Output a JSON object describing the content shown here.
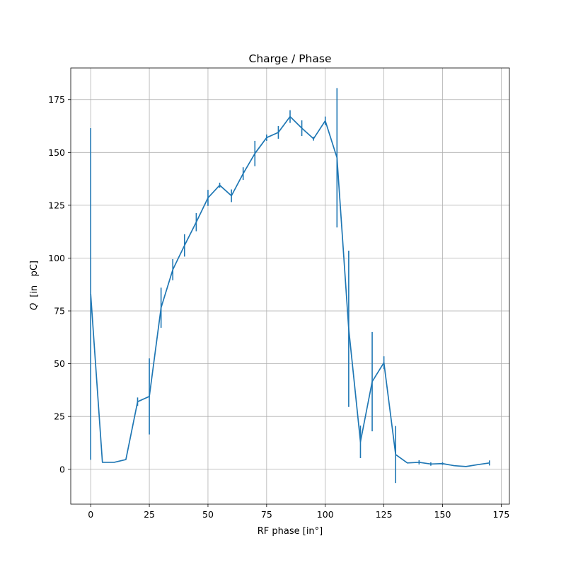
{
  "chart_data": {
    "type": "line",
    "title": "Charge / Phase",
    "xlabel": "RF phase [in°]",
    "ylabel_symbol": "Q",
    "ylabel_unit": "[in   pC]",
    "xlim": [
      -8.5,
      178.5
    ],
    "ylim": [
      -16.5,
      190
    ],
    "xticks": [
      0,
      25,
      50,
      75,
      100,
      125,
      150,
      175
    ],
    "yticks": [
      0,
      25,
      50,
      75,
      100,
      125,
      150,
      175
    ],
    "grid": true,
    "line_color": "#1f77b4",
    "series": [
      {
        "x": [
          0,
          5,
          10,
          15,
          20,
          25,
          30,
          35,
          40,
          45,
          50,
          55,
          60,
          65,
          70,
          75,
          80,
          85,
          90,
          95,
          100,
          105,
          110,
          115,
          120,
          125,
          130,
          135,
          140,
          145,
          150,
          155,
          160,
          165,
          170
        ],
        "y": [
          83,
          3.3,
          3.3,
          4.6,
          32,
          34.5,
          76.5,
          94.5,
          106,
          117,
          128.5,
          134.5,
          129.5,
          140,
          149.5,
          157,
          159.5,
          167,
          161.5,
          156.5,
          165,
          147.5,
          66.5,
          13,
          41.5,
          50.5,
          7,
          3,
          3.3,
          2.5,
          2.7,
          1.7,
          1.3,
          2.2,
          3
        ],
        "err": [
          78.5,
          0,
          0,
          0,
          2,
          18,
          9.5,
          5,
          5.3,
          4.3,
          3.8,
          1.2,
          3,
          3,
          6,
          1.5,
          3,
          3,
          3.7,
          0.9,
          2,
          33,
          37,
          7.7,
          23.5,
          3,
          13.5,
          0,
          1,
          0.8,
          0.6,
          0,
          0,
          0,
          1.2
        ]
      }
    ]
  }
}
